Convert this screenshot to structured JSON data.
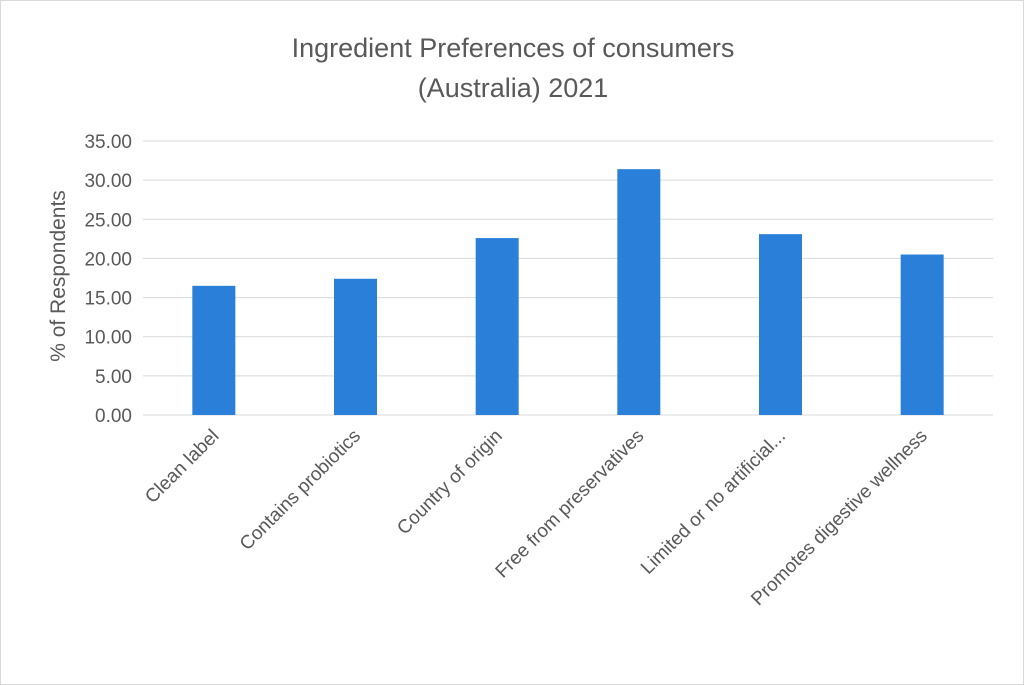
{
  "chart_data": {
    "type": "bar",
    "title_lines": [
      "Ingredient Preferences of consumers",
      "(Australia) 2021"
    ],
    "categories": [
      "Clean label",
      "Contains probiotics",
      "Country of origin",
      "Free from preservatives",
      "Limited or no artificial...",
      "Promotes digestive wellness"
    ],
    "values": [
      16.5,
      17.4,
      22.6,
      31.4,
      23.1,
      20.5
    ],
    "xlabel": "",
    "ylabel": "% of Respondents",
    "ylim": [
      0,
      35
    ],
    "yticks": [
      "0.00",
      "5.00",
      "10.00",
      "15.00",
      "20.00",
      "25.00",
      "30.00",
      "35.00"
    ],
    "grid": true,
    "legend": "none",
    "bar_color": "#2a7fd9",
    "grid_color": "#d9d9d9"
  }
}
